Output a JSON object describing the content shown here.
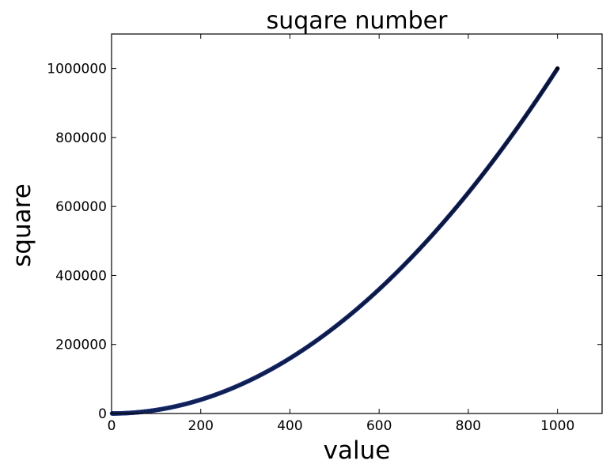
{
  "chart_data": {
    "type": "scatter",
    "title": "suqare number",
    "xlabel": "value",
    "ylabel": "square",
    "xlim": [
      0,
      1100
    ],
    "ylim": [
      0,
      1100000
    ],
    "xticks": [
      0,
      200,
      400,
      600,
      800,
      1000
    ],
    "yticks": [
      0,
      200000,
      400000,
      600000,
      800000,
      1000000
    ],
    "xtick_labels": [
      "0",
      "200",
      "400",
      "600",
      "800",
      "1000"
    ],
    "ytick_labels": [
      "0",
      "200000",
      "400000",
      "600000",
      "800000",
      "1000000"
    ],
    "grid": false,
    "series": [
      {
        "function": "y = x^2",
        "x_start": 1,
        "x_end": 1000,
        "x_step": 1,
        "color": "#000000",
        "edge_color": "#1f3a93"
      }
    ]
  }
}
